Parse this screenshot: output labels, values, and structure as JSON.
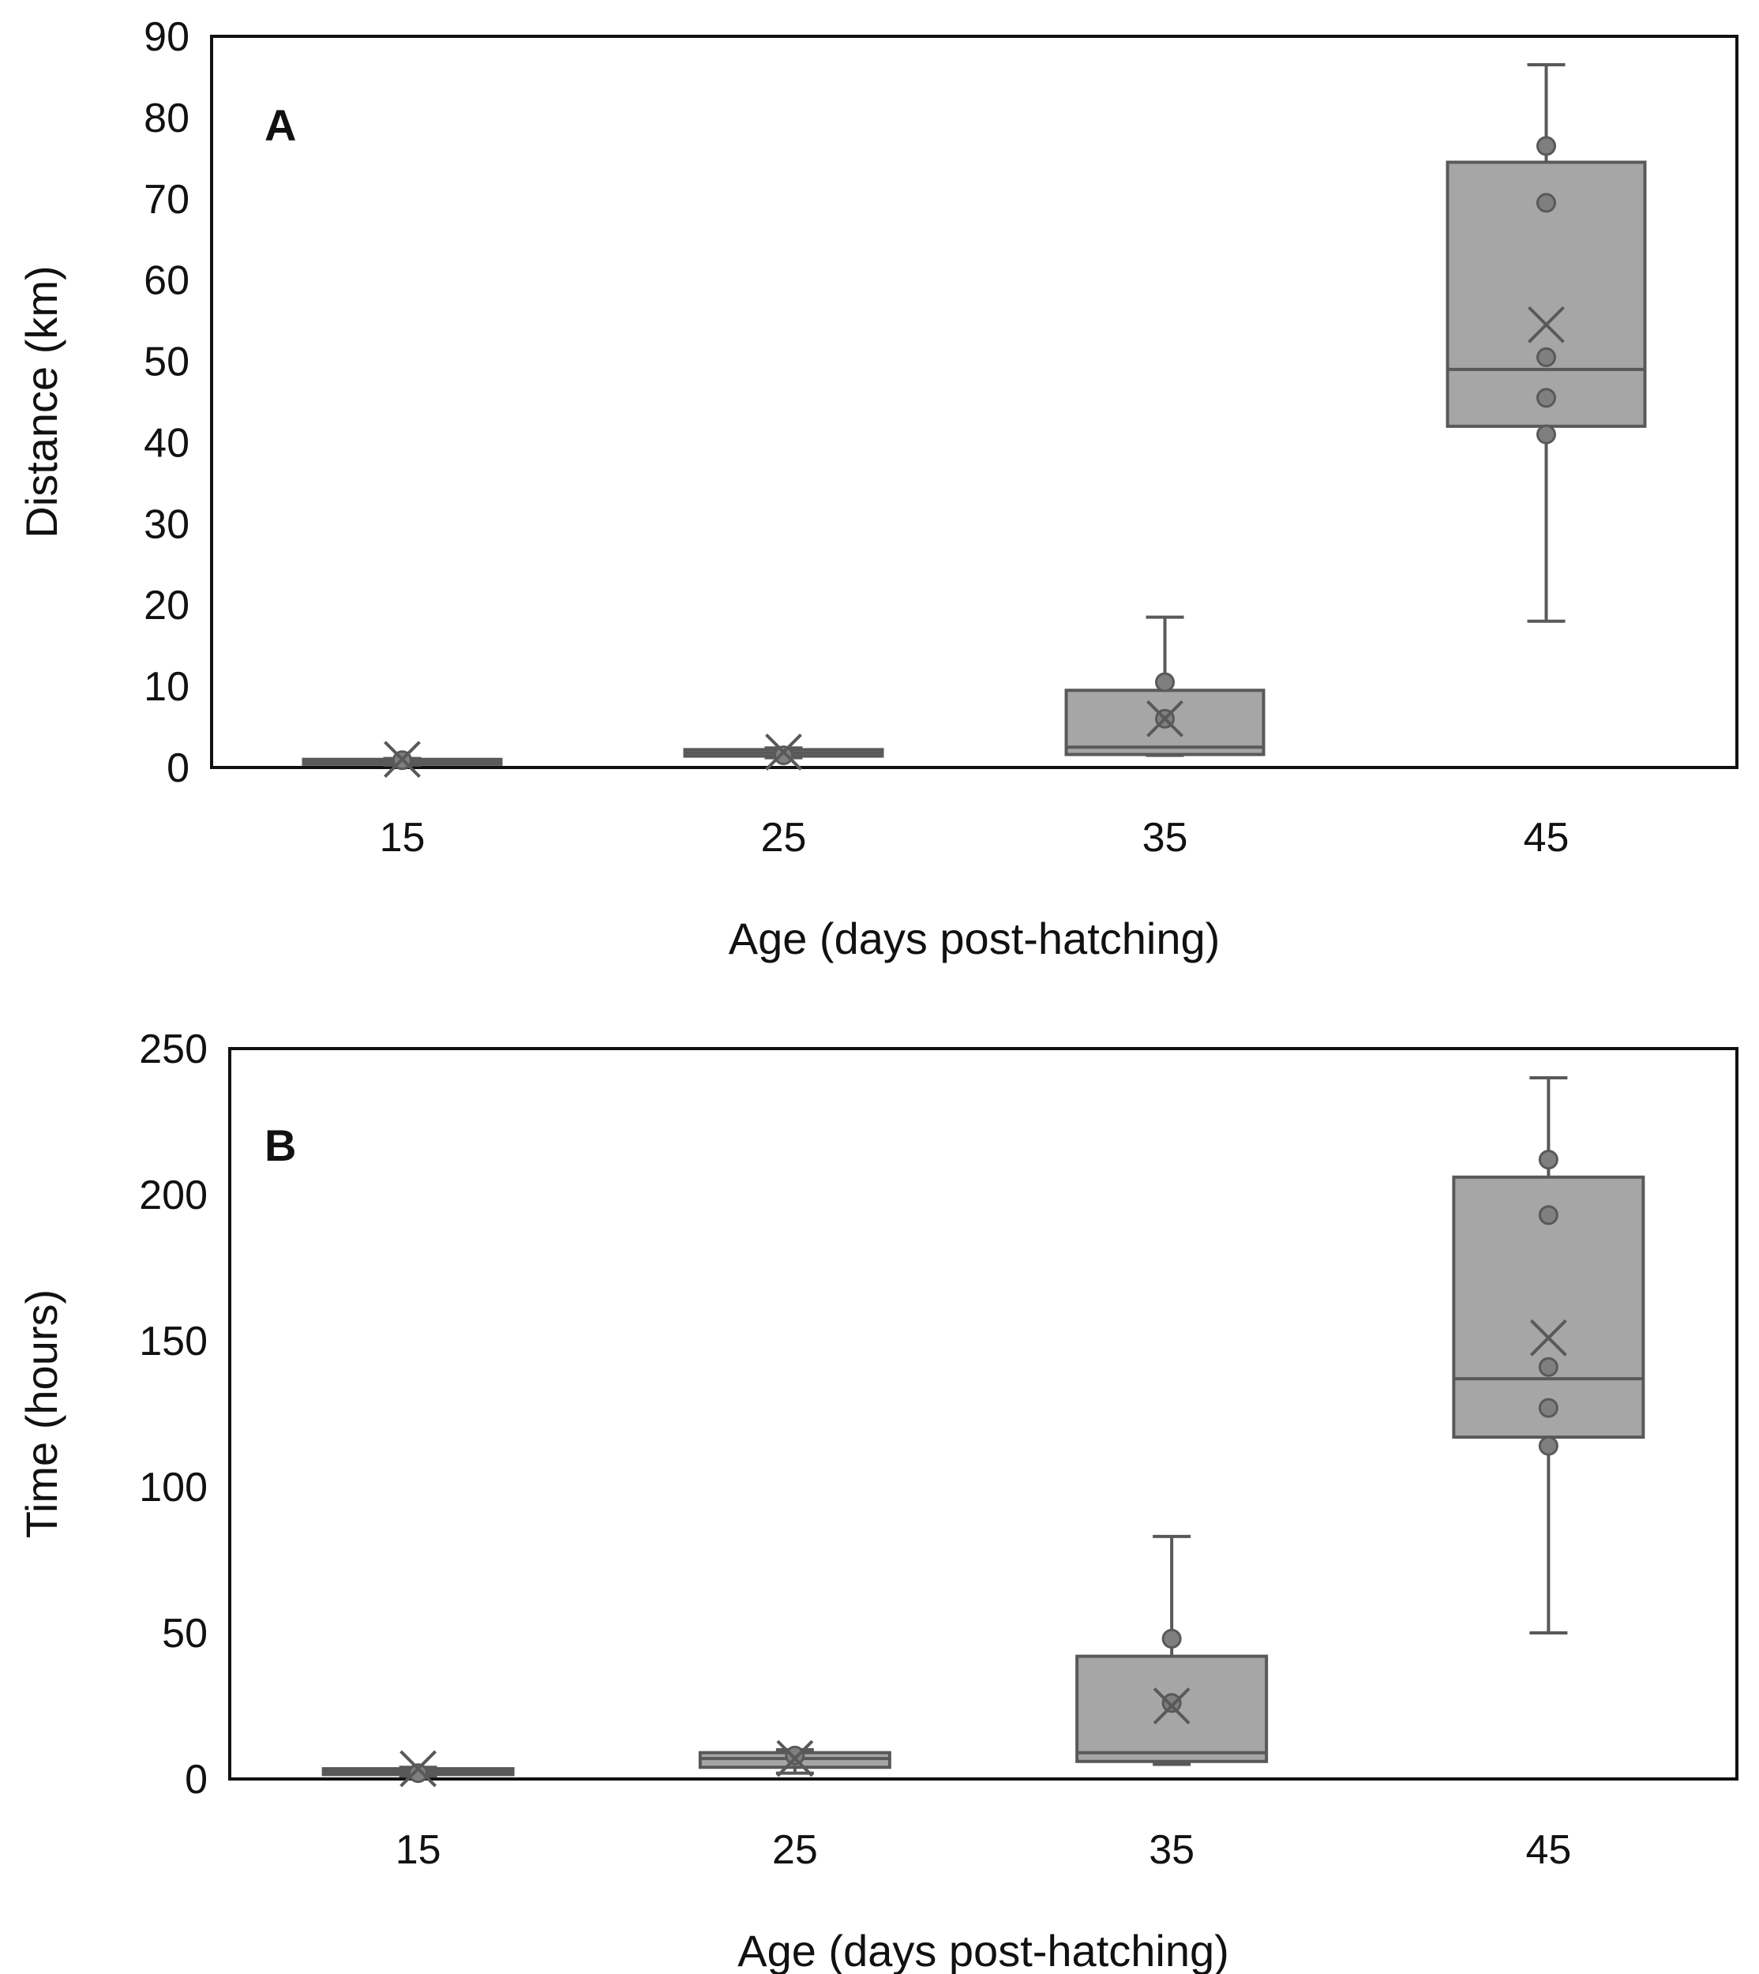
{
  "chart_data": [
    {
      "type": "box",
      "panel_label": "A",
      "xlabel": "Age (days post-hatching)",
      "ylabel": "Distance (km)",
      "ylim": [
        0,
        90
      ],
      "yticks": [
        "0",
        "10",
        "20",
        "30",
        "40",
        "50",
        "60",
        "70",
        "80",
        "90"
      ],
      "categories": [
        "15",
        "25",
        "35",
        "45"
      ],
      "boxes": [
        {
          "category": "15",
          "whisker_min": 0.3,
          "q1": 0.4,
          "median": 0.7,
          "q3": 1.0,
          "whisker_max": 1.1,
          "mean": 1.0,
          "points": [
            0.9
          ]
        },
        {
          "category": "25",
          "whisker_min": 1.2,
          "q1": 1.4,
          "median": 1.8,
          "q3": 2.2,
          "whisker_max": 2.4,
          "mean": 1.9,
          "points": [
            1.5
          ]
        },
        {
          "category": "35",
          "whisker_min": 1.5,
          "q1": 1.6,
          "median": 2.5,
          "q3": 9.5,
          "whisker_max": 18.5,
          "mean": 6.0,
          "points": [
            10.5,
            6.0
          ]
        },
        {
          "category": "45",
          "whisker_min": 18.0,
          "q1": 42.0,
          "median": 49.0,
          "q3": 74.5,
          "whisker_max": 86.5,
          "mean": 54.5,
          "points": [
            76.5,
            69.5,
            50.5,
            45.5,
            41.0
          ]
        }
      ],
      "colors": {
        "box_fill": "#a6a6a6",
        "box_stroke": "#595959",
        "marker": "#7f7f7f"
      }
    },
    {
      "type": "box",
      "panel_label": "B",
      "xlabel": "Age (days post-hatching)",
      "ylabel": "Time (hours)",
      "ylim": [
        0,
        250
      ],
      "yticks": [
        "0",
        "50",
        "100",
        "150",
        "200",
        "250"
      ],
      "categories": [
        "15",
        "25",
        "35",
        "45"
      ],
      "boxes": [
        {
          "category": "15",
          "whisker_min": 1.0,
          "q1": 1.5,
          "median": 2.5,
          "q3": 3.5,
          "whisker_max": 4.0,
          "mean": 3.5,
          "points": [
            2.0
          ]
        },
        {
          "category": "25",
          "whisker_min": 2.0,
          "q1": 4.0,
          "median": 7.0,
          "q3": 9.0,
          "whisker_max": 10.0,
          "mean": 7.0,
          "points": [
            8.0
          ]
        },
        {
          "category": "35",
          "whisker_min": 5.0,
          "q1": 6.0,
          "median": 9.0,
          "q3": 42.0,
          "whisker_max": 83.0,
          "mean": 25.0,
          "points": [
            48.0,
            26.0
          ]
        },
        {
          "category": "45",
          "whisker_min": 50.0,
          "q1": 117.0,
          "median": 137.0,
          "q3": 206.0,
          "whisker_max": 240.0,
          "mean": 151.0,
          "points": [
            212.0,
            193.0,
            141.0,
            127.0,
            114.0
          ]
        }
      ],
      "colors": {
        "box_fill": "#a6a6a6",
        "box_stroke": "#595959",
        "marker": "#7f7f7f"
      }
    }
  ]
}
